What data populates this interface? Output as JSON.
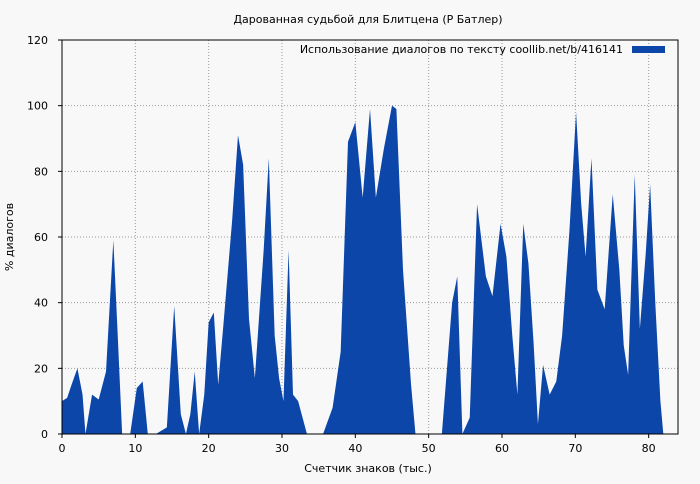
{
  "chart_data": {
    "type": "area",
    "title": "Дарованная судьбой для Блитцена (Р Батлер)",
    "xlabel": "Счетчик знаков (тыс.)",
    "ylabel": "% диалогов",
    "xlim": [
      0,
      84
    ],
    "ylim": [
      0,
      120
    ],
    "x_ticks": [
      0,
      10,
      20,
      30,
      40,
      50,
      60,
      70,
      80
    ],
    "y_ticks": [
      0,
      20,
      40,
      60,
      80,
      100,
      120
    ],
    "grid": true,
    "legend_position": "top-right",
    "series": [
      {
        "name": "Использование диалогов по тексту  coollib.net/b/416141",
        "color": "#0b46a8",
        "points": [
          [
            0,
            10
          ],
          [
            0.7,
            11
          ],
          [
            1.3,
            15
          ],
          [
            2.1,
            20
          ],
          [
            2.8,
            12
          ],
          [
            3.2,
            0
          ],
          [
            4.1,
            12
          ],
          [
            5.0,
            10.5
          ],
          [
            6.0,
            19
          ],
          [
            7.0,
            59
          ],
          [
            7.6,
            30
          ],
          [
            8.2,
            0
          ],
          [
            9.3,
            0
          ],
          [
            10.2,
            14
          ],
          [
            11.0,
            16
          ],
          [
            11.7,
            0
          ],
          [
            12.8,
            0
          ],
          [
            14.3,
            2
          ],
          [
            15.3,
            39
          ],
          [
            16.2,
            6
          ],
          [
            16.9,
            0
          ],
          [
            17.5,
            6
          ],
          [
            18.1,
            19
          ],
          [
            18.7,
            0
          ],
          [
            19.4,
            12
          ],
          [
            20.0,
            34
          ],
          [
            20.7,
            37
          ],
          [
            21.3,
            15
          ],
          [
            22.0,
            33
          ],
          [
            23.2,
            65
          ],
          [
            24.0,
            91
          ],
          [
            24.7,
            82
          ],
          [
            25.5,
            35
          ],
          [
            26.3,
            17
          ],
          [
            27.5,
            56
          ],
          [
            28.2,
            84
          ],
          [
            29.0,
            30
          ],
          [
            29.6,
            17
          ],
          [
            30.2,
            10
          ],
          [
            30.9,
            56
          ],
          [
            31.5,
            12
          ],
          [
            32.2,
            10
          ],
          [
            33.4,
            0
          ],
          [
            35.6,
            0
          ],
          [
            36.9,
            8
          ],
          [
            38.0,
            25
          ],
          [
            39.0,
            89
          ],
          [
            40.0,
            95
          ],
          [
            41.0,
            72
          ],
          [
            42.0,
            99
          ],
          [
            42.8,
            72
          ],
          [
            43.9,
            87
          ],
          [
            45.0,
            100
          ],
          [
            45.6,
            99
          ],
          [
            46.5,
            50
          ],
          [
            47.6,
            15
          ],
          [
            48.2,
            0
          ],
          [
            51.8,
            0
          ],
          [
            53.2,
            40
          ],
          [
            53.9,
            48
          ],
          [
            54.6,
            0
          ],
          [
            55.6,
            5
          ],
          [
            56.6,
            70
          ],
          [
            57.8,
            48
          ],
          [
            58.7,
            42
          ],
          [
            59.8,
            64
          ],
          [
            60.6,
            54
          ],
          [
            61.4,
            30
          ],
          [
            62.1,
            12
          ],
          [
            62.9,
            64
          ],
          [
            63.6,
            52
          ],
          [
            64.3,
            28
          ],
          [
            64.9,
            3
          ],
          [
            65.6,
            21
          ],
          [
            66.5,
            12
          ],
          [
            67.4,
            16
          ],
          [
            68.2,
            30
          ],
          [
            69.2,
            62
          ],
          [
            70.1,
            98
          ],
          [
            70.8,
            70
          ],
          [
            71.4,
            54
          ],
          [
            72.2,
            84
          ],
          [
            73.0,
            44
          ],
          [
            74.0,
            38
          ],
          [
            75.1,
            73
          ],
          [
            76.0,
            50
          ],
          [
            76.6,
            27
          ],
          [
            77.2,
            18
          ],
          [
            78.1,
            79
          ],
          [
            78.8,
            32
          ],
          [
            79.6,
            55
          ],
          [
            80.2,
            76
          ],
          [
            80.9,
            40
          ],
          [
            81.6,
            10
          ],
          [
            82.0,
            0
          ]
        ]
      }
    ]
  }
}
